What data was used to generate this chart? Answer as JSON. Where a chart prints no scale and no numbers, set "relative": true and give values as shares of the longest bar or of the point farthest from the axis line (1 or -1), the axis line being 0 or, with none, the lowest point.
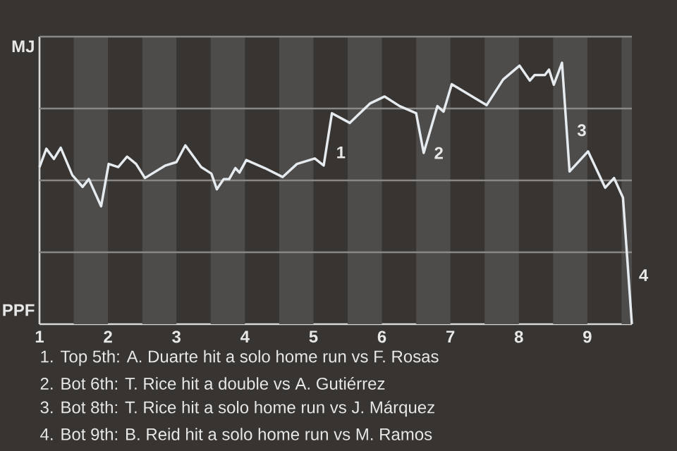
{
  "chart_data": {
    "type": "line",
    "relative": true,
    "x": [
      1.0,
      1.1,
      1.21,
      1.31,
      1.48,
      1.63,
      1.72,
      1.9,
      2.01,
      2.15,
      2.28,
      2.41,
      2.54,
      2.84,
      3.0,
      3.13,
      3.36,
      3.51,
      3.59,
      3.69,
      3.77,
      3.86,
      3.92,
      4.02,
      4.29,
      4.55,
      4.76,
      5.02,
      5.15,
      5.27,
      5.53,
      5.83,
      6.04,
      6.26,
      6.5,
      6.61,
      6.81,
      6.9,
      7.02,
      7.53,
      7.77,
      8.01,
      8.16,
      8.23,
      8.38,
      8.44,
      8.51,
      8.63,
      8.74,
      9.01,
      9.26,
      9.39,
      9.52,
      9.65
    ],
    "series": [
      {
        "color": "#e6ebf0",
        "values": [
          0.601,
          0.671,
          0.632,
          0.675,
          0.57,
          0.525,
          0.555,
          0.451,
          0.613,
          0.601,
          0.641,
          0.613,
          0.559,
          0.607,
          0.62,
          0.684,
          0.601,
          0.576,
          0.516,
          0.555,
          0.555,
          0.597,
          0.58,
          0.628,
          0.597,
          0.563,
          0.613,
          0.634,
          0.607,
          0.807,
          0.77,
          0.845,
          0.871,
          0.834,
          0.807,
          0.655,
          0.834,
          0.813,
          0.918,
          0.838,
          0.936,
          0.989,
          0.932,
          0.953,
          0.953,
          0.974,
          0.916,
          1,
          0.584,
          0.661,
          0.522,
          0.559,
          0.484,
          0
        ]
      }
    ],
    "xlim": [
      1,
      9.65
    ],
    "xticks": [
      1,
      2,
      3,
      4,
      5,
      6,
      7,
      8,
      9
    ],
    "grid": "y",
    "marker": "none",
    "line_style": "solid",
    "bands": [
      {
        "axis": "x",
        "from": 1.5,
        "to": 2,
        "color": "#4e4c4a"
      },
      {
        "axis": "x",
        "from": 2.5,
        "to": 3,
        "color": "#4e4c4a"
      },
      {
        "axis": "x",
        "from": 3.5,
        "to": 4,
        "color": "#4e4c4a"
      },
      {
        "axis": "x",
        "from": 4.5,
        "to": 5,
        "color": "#4e4c4a"
      },
      {
        "axis": "x",
        "from": 5.5,
        "to": 6,
        "color": "#4e4c4a"
      },
      {
        "axis": "x",
        "from": 6.5,
        "to": 7,
        "color": "#4e4c4a"
      },
      {
        "axis": "x",
        "from": 7.5,
        "to": 8,
        "color": "#4e4c4a"
      },
      {
        "axis": "x",
        "from": 8.5,
        "to": 9,
        "color": "#4e4c4a"
      },
      {
        "axis": "x",
        "from": 9.5,
        "to": 9.65,
        "color": "#4e4c4a"
      }
    ],
    "annotations": [
      "MJ",
      "PPF",
      {
        "text": "1",
        "x": 5.18,
        "y": 0.657
      },
      {
        "text": "2",
        "x": 6.61,
        "y": 0.655
      },
      {
        "text": "3",
        "x": 8.698,
        "y": 0.742
      },
      {
        "text": "4",
        "x": 9.6,
        "y": 0.187
      },
      "1. Top 5th: A. Duarte hit a solo home run vs F. Rosas",
      "2. Bot 6th: T. Rice hit a double vs A. Gutiérrez",
      "3. Bot 8th: T. Rice hit a solo home run vs J. Márquez",
      "4. Bot 9th: B. Reid hit a solo home run vs M. Ramos"
    ]
  }
}
